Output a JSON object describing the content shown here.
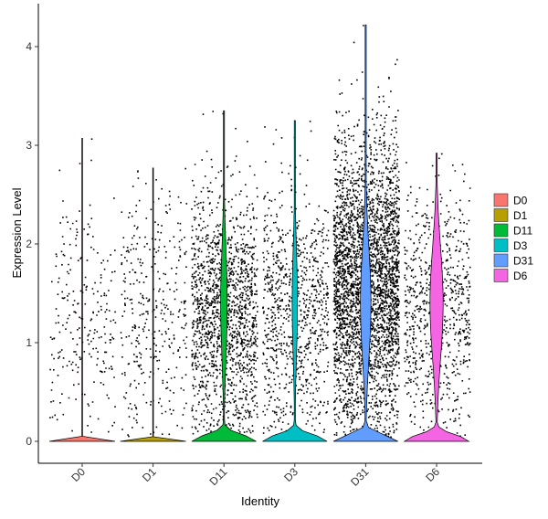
{
  "chart_data": {
    "type": "violin",
    "xlabel": "Identity",
    "ylabel": "Expression Level",
    "ylim": [
      -0.22,
      4.42
    ],
    "yticks": [
      0,
      1,
      2,
      3,
      4
    ],
    "categories": [
      "D0",
      "D1",
      "D11",
      "D3",
      "D31",
      "D6"
    ],
    "legend_position": "right",
    "grid": false,
    "series": [
      {
        "name": "D0",
        "color": "#F8766D",
        "max": 3.07,
        "nonzero_fraction": 0.35,
        "points": 700,
        "violin_peak_width": 0.02,
        "upper_tail_width": 0.0
      },
      {
        "name": "D1",
        "color": "#B79F00",
        "max": 2.77,
        "nonzero_fraction": 0.4,
        "points": 900,
        "violin_peak_width": 0.02,
        "upper_tail_width": 0.0
      },
      {
        "name": "D11",
        "color": "#00BA38",
        "max": 3.35,
        "nonzero_fraction": 0.65,
        "points": 2400,
        "violin_peak_width": 0.44,
        "upper_tail_width": 0.1
      },
      {
        "name": "D3",
        "color": "#00BFC4",
        "max": 3.25,
        "nonzero_fraction": 0.6,
        "points": 1500,
        "violin_peak_width": 0.44,
        "upper_tail_width": 0.08
      },
      {
        "name": "D31",
        "color": "#619CFF",
        "max": 4.22,
        "nonzero_fraction": 0.8,
        "points": 4200,
        "violin_peak_width": 0.44,
        "upper_tail_width": 0.16
      },
      {
        "name": "D6",
        "color": "#F564E3",
        "max": 2.92,
        "nonzero_fraction": 0.7,
        "points": 1100,
        "violin_peak_width": 0.44,
        "upper_tail_width": 0.2
      }
    ]
  }
}
